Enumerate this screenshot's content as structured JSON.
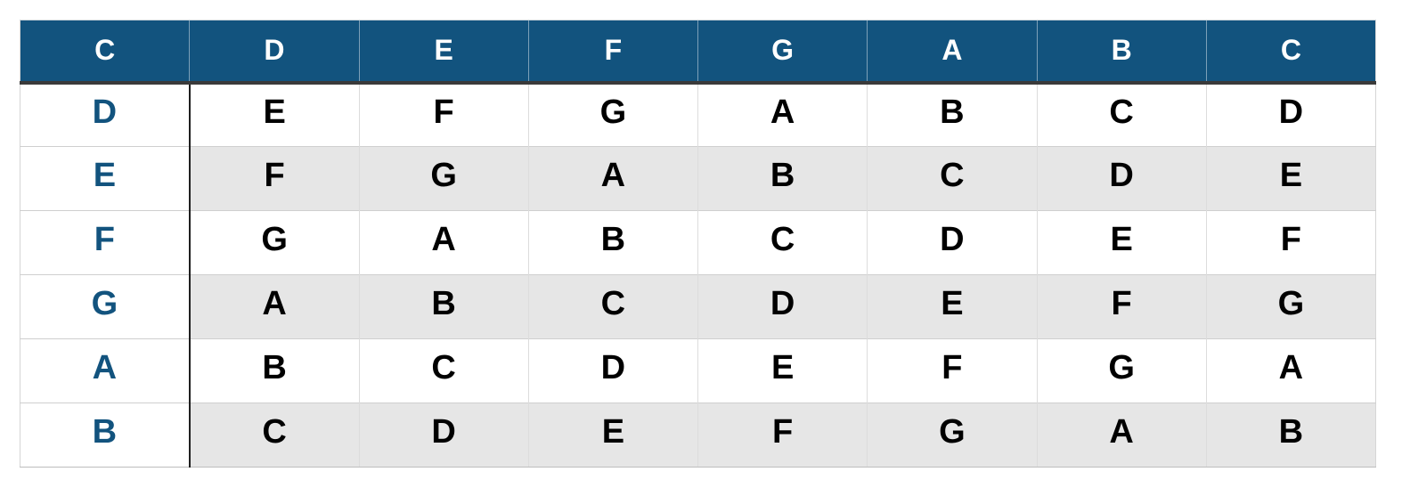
{
  "table": {
    "header": [
      "C",
      "D",
      "E",
      "F",
      "G",
      "A",
      "B",
      "C"
    ],
    "rows": [
      {
        "label": "D",
        "cells": [
          "E",
          "F",
          "G",
          "A",
          "B",
          "C",
          "D"
        ]
      },
      {
        "label": "E",
        "cells": [
          "F",
          "G",
          "A",
          "B",
          "C",
          "D",
          "E"
        ]
      },
      {
        "label": "F",
        "cells": [
          "G",
          "A",
          "B",
          "C",
          "D",
          "E",
          "F"
        ]
      },
      {
        "label": "G",
        "cells": [
          "A",
          "B",
          "C",
          "D",
          "E",
          "F",
          "G"
        ]
      },
      {
        "label": "A",
        "cells": [
          "B",
          "C",
          "D",
          "E",
          "F",
          "G",
          "A"
        ]
      },
      {
        "label": "B",
        "cells": [
          "C",
          "D",
          "E",
          "F",
          "G",
          "A",
          "B"
        ]
      }
    ],
    "colors": {
      "header_bg": "#12537E",
      "header_text": "#FFFFFF",
      "label_text": "#12537E",
      "stripe_bg": "#E6E6E6",
      "cell_text": "#000000",
      "header_rule": "#3A3A3A",
      "label_rule": "#1F1F1F",
      "grid_line": "#CFCFCF"
    }
  }
}
